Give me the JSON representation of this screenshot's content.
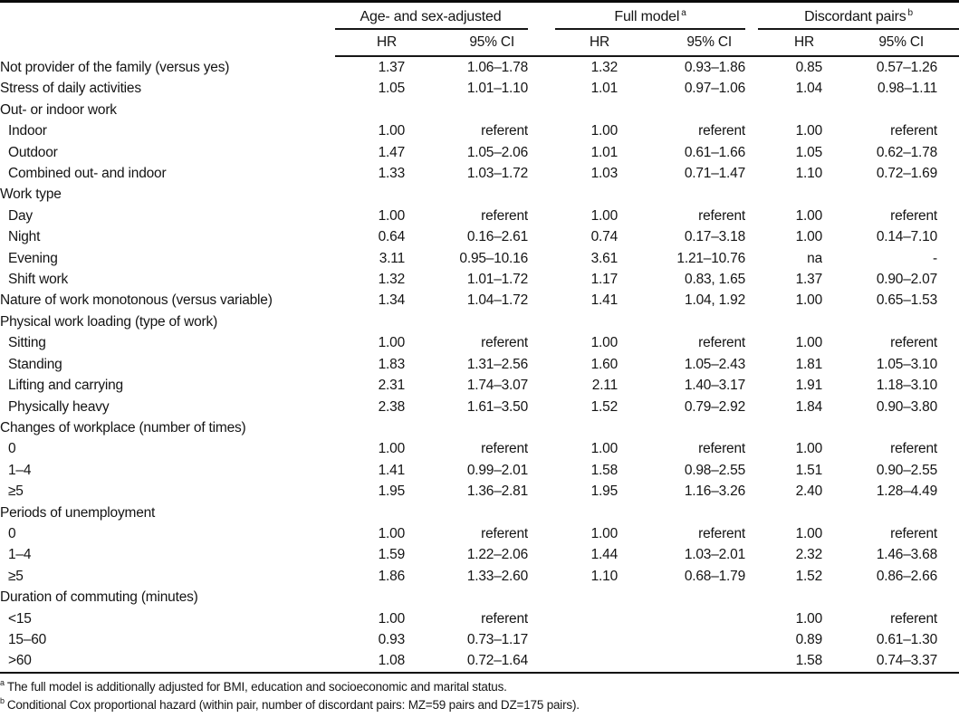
{
  "table": {
    "col_groups": [
      {
        "label": "Age- and sex-adjusted",
        "sup": ""
      },
      {
        "label": "Full model",
        "sup": "a"
      },
      {
        "label": "Discordant pairs",
        "sup": "b"
      }
    ],
    "sub_headers": [
      "HR",
      "95% CI",
      "HR",
      "95% CI",
      "HR",
      "95% CI"
    ],
    "rows": [
      {
        "label": "Not provider of the family (versus yes)",
        "cells": [
          "1.37",
          "1.06–1.78",
          "1.32",
          "0.93–1.86",
          "0.85",
          "0.57–1.26"
        ]
      },
      {
        "label": "Stress of daily activities",
        "cells": [
          "1.05",
          "1.01–1.10",
          "1.01",
          "0.97–1.06",
          "1.04",
          "0.98–1.11"
        ]
      },
      {
        "label": "Out- or indoor work",
        "section": true
      },
      {
        "label": "Indoor",
        "indent": true,
        "cells": [
          "1.00",
          "referent",
          "1.00",
          "referent",
          "1.00",
          "referent"
        ]
      },
      {
        "label": "Outdoor",
        "indent": true,
        "cells": [
          "1.47",
          "1.05–2.06",
          "1.01",
          "0.61–1.66",
          "1.05",
          "0.62–1.78"
        ]
      },
      {
        "label": "Combined out- and indoor",
        "indent": true,
        "cells": [
          "1.33",
          "1.03–1.72",
          "1.03",
          "0.71–1.47",
          "1.10",
          "0.72–1.69"
        ]
      },
      {
        "label": "Work type",
        "section": true
      },
      {
        "label": "Day",
        "indent": true,
        "cells": [
          "1.00",
          "referent",
          "1.00",
          "referent",
          "1.00",
          "referent"
        ]
      },
      {
        "label": "Night",
        "indent": true,
        "cells": [
          "0.64",
          "0.16–2.61",
          "0.74",
          "0.17–3.18",
          "1.00",
          "0.14–7.10"
        ]
      },
      {
        "label": "Evening",
        "indent": true,
        "cells": [
          "3.11",
          "0.95–10.16",
          "3.61",
          "1.21–10.76",
          "na",
          "-"
        ]
      },
      {
        "label": "Shift work",
        "indent": true,
        "cells": [
          "1.32",
          "1.01–1.72",
          "1.17",
          "0.83, 1.65",
          "1.37",
          "0.90–2.07"
        ]
      },
      {
        "label": "Nature of work monotonous (versus variable)",
        "cells": [
          "1.34",
          "1.04–1.72",
          "1.41",
          "1.04, 1.92",
          "1.00",
          "0.65–1.53"
        ]
      },
      {
        "label": "Physical work loading (type of work)",
        "section": true
      },
      {
        "label": "Sitting",
        "indent": true,
        "cells": [
          "1.00",
          "referent",
          "1.00",
          "referent",
          "1.00",
          "referent"
        ]
      },
      {
        "label": "Standing",
        "indent": true,
        "cells": [
          "1.83",
          "1.31–2.56",
          "1.60",
          "1.05–2.43",
          "1.81",
          "1.05–3.10"
        ]
      },
      {
        "label": "Lifting and carrying",
        "indent": true,
        "cells": [
          "2.31",
          "1.74–3.07",
          "2.11",
          "1.40–3.17",
          "1.91",
          "1.18–3.10"
        ]
      },
      {
        "label": "Physically heavy",
        "indent": true,
        "cells": [
          "2.38",
          "1.61–3.50",
          "1.52",
          "0.79–2.92",
          "1.84",
          "0.90–3.80"
        ]
      },
      {
        "label": "Changes of workplace (number of times)",
        "section": true
      },
      {
        "label": "0",
        "indent": true,
        "cells": [
          "1.00",
          "referent",
          "1.00",
          "referent",
          "1.00",
          "referent"
        ]
      },
      {
        "label": "1–4",
        "indent": true,
        "cells": [
          "1.41",
          "0.99–2.01",
          "1.58",
          "0.98–2.55",
          "1.51",
          "0.90–2.55"
        ]
      },
      {
        "label": "≥5",
        "indent": true,
        "cells": [
          "1.95",
          "1.36–2.81",
          "1.95",
          "1.16–3.26",
          "2.40",
          "1.28–4.49"
        ]
      },
      {
        "label": "Periods of unemployment",
        "section": true
      },
      {
        "label": "0",
        "indent": true,
        "cells": [
          "1.00",
          "referent",
          "1.00",
          "referent",
          "1.00",
          "referent"
        ]
      },
      {
        "label": "1–4",
        "indent": true,
        "cells": [
          "1.59",
          "1.22–2.06",
          "1.44",
          "1.03–2.01",
          "2.32",
          "1.46–3.68"
        ]
      },
      {
        "label": "≥5",
        "indent": true,
        "cells": [
          "1.86",
          "1.33–2.60",
          "1.10",
          "0.68–1.79",
          "1.52",
          "0.86–2.66"
        ]
      },
      {
        "label": "Duration of commuting (minutes)",
        "section": true
      },
      {
        "label": "<15",
        "indent": true,
        "cells": [
          "1.00",
          "referent",
          "",
          "",
          "1.00",
          "referent"
        ]
      },
      {
        "label": "15–60",
        "indent": true,
        "cells": [
          "0.93",
          "0.73–1.17",
          "",
          "",
          "0.89",
          "0.61–1.30"
        ]
      },
      {
        "label": ">60",
        "indent": true,
        "cells": [
          "1.08",
          "0.72–1.64",
          "",
          "",
          "1.58",
          "0.74–3.37"
        ]
      }
    ],
    "footnotes": [
      {
        "sup": "a",
        "text": "The full model is additionally adjusted for BMI, education and socioeconomic and marital status."
      },
      {
        "sup": "b",
        "text": "Conditional Cox proportional hazard (within pair, number of discordant pairs: MZ=59 pairs and DZ=175 pairs)."
      }
    ]
  }
}
